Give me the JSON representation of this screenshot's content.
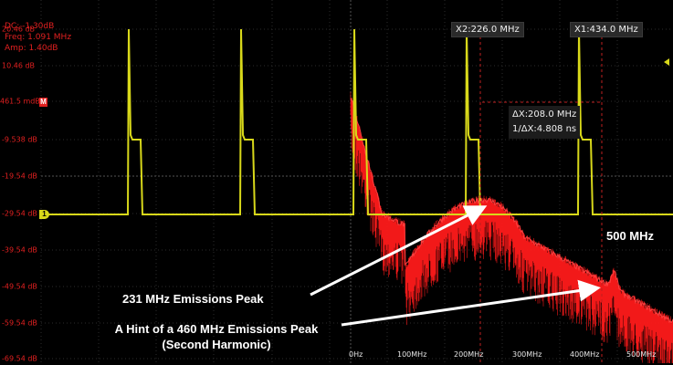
{
  "measurements": {
    "dc": "DC: -1.30dB",
    "freq": "Freq: 1.091 MHz",
    "amp": "Amp: 1.40dB"
  },
  "y_axis_labels": [
    "20.46 dB",
    "10.46 dB",
    "461.5 mdB",
    "-9.538 dB",
    "-19.54 dB",
    "-29.54 dB",
    "-39.54 dB",
    "-49.54 dB",
    "-59.54 dB",
    "-69.54 dB"
  ],
  "x_axis_labels": [
    "0Hz",
    "100MHz",
    "200MHz",
    "300MHz",
    "400MHz",
    "500MHz"
  ],
  "cursors": {
    "x2": "X2:226.0 MHz",
    "x1": "X1:434.0 MHz",
    "delta_x": "ΔX:208.0 MHz",
    "inverse_delta_x": "1/ΔX:4.808 ns"
  },
  "markers": {
    "math_ref": "M",
    "channel_1": "1"
  },
  "annotations": {
    "right_label": "500 MHz",
    "peak_231": "231 MHz Emissions Peak",
    "peak_460_line1": "A Hint of a 460 MHz Emissions Peak",
    "peak_460_line2": "(Second Harmonic)"
  },
  "colors": {
    "background": "#000000",
    "time_trace": "#d8d81a",
    "fft_trace": "#ff1a1a",
    "axis_labels": "#e02020",
    "annotation": "#ffffff"
  }
}
